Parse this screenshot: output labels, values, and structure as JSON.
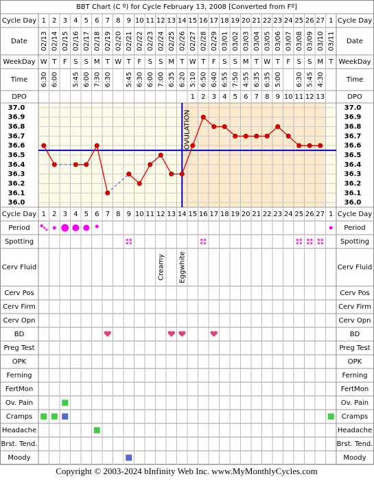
{
  "title": "BBT Chart (C º) for Cycle February 13, 2008  [Converted from Fº]",
  "header_labels": [
    "Cycle Day",
    "Date",
    "WeekDay",
    "Time",
    "DPO"
  ],
  "dates": [
    "02/13",
    "02/14",
    "02/15",
    "02/16",
    "02/17",
    "02/18",
    "02/19",
    "02/20",
    "02/21",
    "02/22",
    "02/23",
    "02/24",
    "02/25",
    "02/26",
    "02/27",
    "02/28",
    "02/29",
    "03/01",
    "03/02",
    "03/03",
    "03/04",
    "03/05",
    "03/06",
    "03/07",
    "03/08",
    "03/09",
    "03/10",
    "03/11"
  ],
  "weekdays": [
    "W",
    "T",
    "F",
    "S",
    "S",
    "M",
    "T",
    "W",
    "T",
    "F",
    "S",
    "S",
    "M",
    "T",
    "W",
    "T",
    "F",
    "S",
    "S",
    "M",
    "T",
    "W",
    "T",
    "F",
    "S",
    "S",
    "M",
    "T"
  ],
  "times": [
    "6:30",
    "6:00",
    null,
    "5:45",
    "6:00",
    "7:30",
    "6:30",
    null,
    "5:45",
    "6:30",
    "6:00",
    "7:00",
    "6:35",
    "6:20",
    "5:10",
    "6:50",
    "6:40",
    "6:55",
    "7:50",
    "4:55",
    "6:35",
    "6:35",
    "5:00",
    null,
    "6:30",
    "5:45",
    "4:30",
    null
  ],
  "dpo": [
    null,
    null,
    null,
    null,
    null,
    null,
    null,
    null,
    null,
    null,
    null,
    null,
    null,
    null,
    1,
    2,
    3,
    4,
    5,
    6,
    7,
    8,
    9,
    10,
    11,
    12,
    13,
    null
  ],
  "chart_data": {
    "type": "line",
    "categories": [
      "1",
      "2",
      "3",
      "4",
      "5",
      "6",
      "7",
      "8",
      "9",
      "10",
      "11",
      "12",
      "13",
      "14",
      "15",
      "16",
      "17",
      "18",
      "19",
      "20",
      "21",
      "22",
      "23",
      "24",
      "25",
      "26",
      "27",
      "1"
    ],
    "series": [
      {
        "color": "#e00000",
        "values": [
          36.6,
          36.4,
          null,
          36.4,
          36.4,
          36.6,
          36.1,
          null,
          36.3,
          36.2,
          36.4,
          36.5,
          36.3,
          36.3,
          36.6,
          36.9,
          36.8,
          36.8,
          36.7,
          36.7,
          36.7,
          36.7,
          36.8,
          36.7,
          36.6,
          36.6,
          36.6,
          null
        ]
      }
    ],
    "ylim": [
      35.95,
      37.05
    ],
    "yticks": [
      {
        "value": 36,
        "label": "36.0"
      },
      {
        "value": 36.1,
        "label": "36.1"
      },
      {
        "value": 36.2,
        "label": "36.2"
      },
      {
        "value": 36.3,
        "label": "36.3"
      },
      {
        "value": 36.4,
        "label": "36.4"
      },
      {
        "value": 36.5,
        "label": "36.5"
      },
      {
        "value": 36.6,
        "label": "36.6"
      },
      {
        "value": 36.7,
        "label": "36.7"
      },
      {
        "value": 36.8,
        "label": "36.8"
      },
      {
        "value": 36.9,
        "label": "36.9"
      },
      {
        "value": 37,
        "label": "37.0"
      }
    ],
    "coverline": 36.55,
    "ovulation_day": 14,
    "ovulation_label": "OVULATION",
    "grid": true
  },
  "observation_labels": [
    "Period",
    "Spotting",
    "Cerv Fluid",
    "Cerv Pos",
    "Cerv Firm",
    "Cerv Opn",
    "BD",
    "Preg Test",
    "OPK",
    "Ferning",
    "FertMon",
    "Ov. Pain",
    "Cramps",
    "Headache",
    "Brst. Tend.",
    "Moody"
  ],
  "cervical_fluid": [
    null,
    null,
    null,
    null,
    null,
    null,
    null,
    null,
    null,
    null,
    null,
    "Creamy",
    null,
    "Eggwhite",
    null,
    null,
    null,
    null,
    null,
    null,
    null,
    null,
    null,
    null,
    null,
    null,
    null,
    null
  ],
  "footer": "Copyright © 2003-2024 bInfinity Web Inc.    www.MyMonthlyCycles.com"
}
